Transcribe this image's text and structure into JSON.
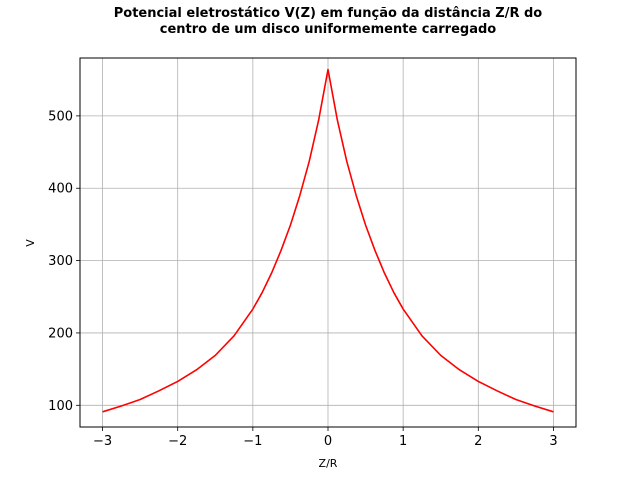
{
  "chart_data": {
    "type": "line",
    "title_lines": [
      "Potencial eletrostático V(Z) em função da distância Z/R do",
      "centro de um disco uniformemente carregado"
    ],
    "xlabel": "Z/R",
    "ylabel": "V",
    "xlim": [
      -3.3,
      3.3
    ],
    "ylim": [
      70,
      580
    ],
    "xticks": [
      {
        "value": -3,
        "label": "−3"
      },
      {
        "value": -2,
        "label": "−2"
      },
      {
        "value": -1,
        "label": "−1"
      },
      {
        "value": 0,
        "label": "0"
      },
      {
        "value": 1,
        "label": "1"
      },
      {
        "value": 2,
        "label": "2"
      },
      {
        "value": 3,
        "label": "3"
      }
    ],
    "yticks": [
      {
        "value": 100,
        "label": "100"
      },
      {
        "value": 200,
        "label": "200"
      },
      {
        "value": 300,
        "label": "300"
      },
      {
        "value": 400,
        "label": "400"
      },
      {
        "value": 500,
        "label": "500"
      }
    ],
    "grid": true,
    "series": [
      {
        "color": "#ff0000",
        "x": [
          -3.0,
          -2.75,
          -2.5,
          -2.25,
          -2.0,
          -1.75,
          -1.5,
          -1.25,
          -1.0,
          -0.875,
          -0.75,
          -0.625,
          -0.5,
          -0.375,
          -0.25,
          -0.125,
          0.0,
          0.125,
          0.25,
          0.375,
          0.5,
          0.625,
          0.75,
          0.875,
          1.0,
          1.25,
          1.5,
          1.75,
          2.0,
          2.25,
          2.5,
          2.75,
          3.0
        ],
        "y": [
          91,
          99,
          108,
          120,
          133,
          149,
          169,
          196,
          233,
          256,
          283,
          314,
          349,
          390,
          437,
          494,
          564,
          494,
          437,
          390,
          349,
          314,
          283,
          256,
          233,
          196,
          169,
          149,
          133,
          120,
          108,
          99,
          91
        ]
      }
    ]
  }
}
